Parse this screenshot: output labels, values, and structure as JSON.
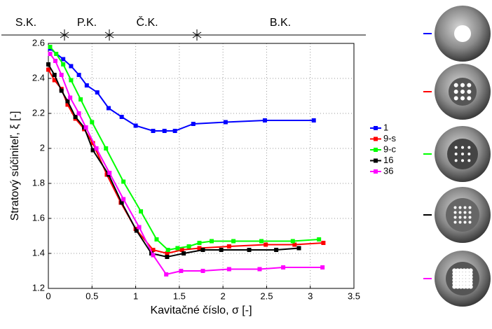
{
  "chart_data": {
    "type": "line",
    "x_label": "Kavitačné číslo, σ [-]",
    "y_label": "Stratový súčiniteľ, ξ [-]",
    "annotations": [
      "S.K.",
      "P.K.",
      "Č.K.",
      "B.K."
    ],
    "xlim": [
      0,
      3.5
    ],
    "ylim": [
      1.2,
      2.6
    ],
    "xticks": [
      0,
      0.5,
      1,
      1.5,
      2,
      2.5,
      3,
      3.5
    ],
    "yticks": [
      1.2,
      1.4,
      1.6,
      1.8,
      2,
      2.2,
      2.4,
      2.6
    ],
    "grid": true,
    "legend": "right",
    "series": [
      {
        "name": "1",
        "color": "#0000ff",
        "x": [
          0.02,
          0.17,
          0.26,
          0.35,
          0.44,
          0.56,
          0.69,
          0.84,
          1.0,
          1.2,
          1.33,
          1.45,
          1.66,
          2.03,
          2.48,
          3.04
        ],
        "values": [
          2.57,
          2.51,
          2.47,
          2.42,
          2.36,
          2.32,
          2.23,
          2.18,
          2.13,
          2.1,
          2.1,
          2.1,
          2.14,
          2.15,
          2.16,
          2.16
        ]
      },
      {
        "name": "9-s",
        "color": "#ff0000",
        "x": [
          0.0,
          0.07,
          0.15,
          0.22,
          0.31,
          0.41,
          0.51,
          0.67,
          0.83,
          1.0,
          1.2,
          1.36,
          1.53,
          1.73,
          2.07,
          2.49,
          2.82,
          3.15
        ],
        "values": [
          2.45,
          2.39,
          2.34,
          2.25,
          2.17,
          2.11,
          2.03,
          1.85,
          1.69,
          1.54,
          1.42,
          1.4,
          1.42,
          1.43,
          1.44,
          1.45,
          1.45,
          1.46
        ]
      },
      {
        "name": "9-c",
        "color": "#00ff00",
        "x": [
          0.02,
          0.09,
          0.17,
          0.26,
          0.37,
          0.5,
          0.66,
          0.86,
          1.06,
          1.24,
          1.37,
          1.48,
          1.61,
          1.73,
          1.87,
          2.12,
          2.44,
          2.8,
          3.1
        ],
        "values": [
          2.58,
          2.54,
          2.48,
          2.39,
          2.28,
          2.15,
          2.0,
          1.81,
          1.64,
          1.48,
          1.42,
          1.43,
          1.44,
          1.46,
          1.47,
          1.47,
          1.47,
          1.47,
          1.48
        ]
      },
      {
        "name": "16",
        "color": "#000000",
        "x": [
          0.0,
          0.07,
          0.15,
          0.22,
          0.31,
          0.41,
          0.51,
          0.69,
          0.84,
          1.01,
          1.18,
          1.36,
          1.55,
          1.77,
          1.98,
          2.3,
          2.61,
          2.87
        ],
        "values": [
          2.48,
          2.42,
          2.33,
          2.27,
          2.18,
          2.12,
          1.99,
          1.85,
          1.69,
          1.53,
          1.4,
          1.38,
          1.4,
          1.42,
          1.42,
          1.42,
          1.42,
          1.43
        ]
      },
      {
        "name": "36",
        "color": "#ff00ff",
        "x": [
          0.02,
          0.08,
          0.15,
          0.25,
          0.35,
          0.43,
          0.55,
          0.7,
          0.86,
          1.04,
          1.2,
          1.35,
          1.52,
          1.77,
          2.07,
          2.42,
          2.69,
          3.14
        ],
        "values": [
          2.54,
          2.5,
          2.42,
          2.29,
          2.2,
          2.12,
          2.0,
          1.86,
          1.71,
          1.55,
          1.39,
          1.28,
          1.3,
          1.3,
          1.31,
          1.31,
          1.32,
          1.32
        ]
      }
    ]
  }
}
